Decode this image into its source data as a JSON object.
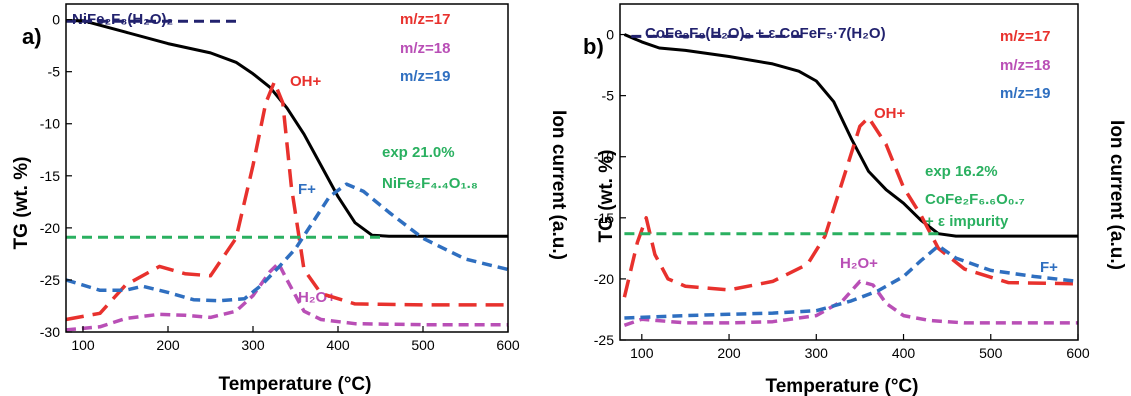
{
  "chart_data": [
    {
      "type": "line",
      "panel_label": "a)",
      "xlabel": "Temperature (°C)",
      "ylabel": "TG (wt. %)",
      "y2label": "Ion current (a.u.)",
      "xlim": [
        80,
        600
      ],
      "ylim": [
        -30,
        1.5
      ],
      "xticks": [
        100,
        200,
        300,
        400,
        500,
        600
      ],
      "yticks": [
        0,
        -5,
        -10,
        -15,
        -20,
        -25,
        -30
      ],
      "sample_label": "NiFe₂F₈(H₂O)₂",
      "annotations": [
        "OH+",
        "F+",
        "H₂O+",
        "exp 21.0%",
        "NiFe₂F₄.₄O₁.₈"
      ],
      "legend": [
        {
          "name": "m/z=17",
          "color": "#e8312d"
        },
        {
          "name": "m/z=18",
          "color": "#b94fb6"
        },
        {
          "name": "m/z=19",
          "color": "#2f6fc0"
        }
      ],
      "series": [
        {
          "role": "TG",
          "color": "#000000",
          "style": "solid",
          "x": [
            80,
            100,
            150,
            200,
            250,
            280,
            300,
            320,
            340,
            360,
            380,
            400,
            420,
            440,
            460,
            500,
            550,
            600
          ],
          "y": [
            -0.1,
            -0.1,
            -1.2,
            -2.3,
            -3.2,
            -4.1,
            -5.2,
            -6.5,
            -8.5,
            -11,
            -14,
            -17,
            -19.5,
            -20.7,
            -20.8,
            -20.8,
            -20.8,
            -20.8
          ]
        },
        {
          "role": "m/z=17",
          "color": "#e8312d",
          "style": "dashed",
          "x": [
            80,
            120,
            150,
            190,
            220,
            250,
            280,
            300,
            315,
            325,
            335,
            345,
            360,
            380,
            420,
            500,
            600
          ],
          "y": [
            -28.8,
            -28.2,
            -25.5,
            -23.7,
            -24.4,
            -24.6,
            -21,
            -14,
            -8,
            -6,
            -8,
            -16,
            -24,
            -26.3,
            -27.3,
            -27.4,
            -27.4
          ]
        },
        {
          "role": "m/z=18",
          "color": "#b94fb6",
          "style": "dashed",
          "x": [
            80,
            120,
            150,
            190,
            220,
            250,
            280,
            300,
            320,
            330,
            340,
            350,
            360,
            380,
            420,
            500,
            600
          ],
          "y": [
            -29.8,
            -29.5,
            -28.7,
            -28.3,
            -28.4,
            -28.6,
            -28,
            -26.5,
            -24.2,
            -23.4,
            -25,
            -26.5,
            -28,
            -28.8,
            -29.2,
            -29.3,
            -29.3
          ]
        },
        {
          "role": "m/z=19",
          "color": "#2f6fc0",
          "style": "dashed",
          "x": [
            80,
            120,
            150,
            170,
            200,
            230,
            260,
            290,
            310,
            330,
            350,
            370,
            390,
            410,
            430,
            460,
            500,
            550,
            600
          ],
          "y": [
            -25,
            -26,
            -26,
            -25.6,
            -26.2,
            -26.9,
            -27,
            -26.8,
            -25.5,
            -23.8,
            -22,
            -19.5,
            -17,
            -15.8,
            -16.5,
            -18.5,
            -21,
            -23,
            -24
          ]
        },
        {
          "role": "exp",
          "color": "#2ab060",
          "style": "dashed",
          "x": [
            80,
            450
          ],
          "y": [
            -20.9,
            -20.9
          ]
        },
        {
          "role": "reference",
          "color": "#22226e",
          "style": "dashed",
          "x": [
            80,
            283
          ],
          "y": [
            -0.15,
            -0.15
          ]
        }
      ]
    },
    {
      "type": "line",
      "panel_label": "b)",
      "xlabel": "Temperature (°C)",
      "ylabel": "TG (wt. %)",
      "y2label": "Ion current (a.u.)",
      "xlim": [
        75,
        600
      ],
      "ylim": [
        -25,
        2.5
      ],
      "xticks": [
        100,
        200,
        300,
        400,
        500,
        600
      ],
      "yticks": [
        0,
        -5,
        -10,
        -15,
        -20,
        -25
      ],
      "sample_label": "CoFe₂F₈(H₂O)₂ + ε CoFeF₅·7(H₂O)",
      "annotations": [
        "OH+",
        "H₂O+",
        "F+",
        "exp 16.2%",
        "CoFe₂F₆.₆O₀.₇",
        "+ ε impurity"
      ],
      "legend": [
        {
          "name": "m/z=17",
          "color": "#e8312d"
        },
        {
          "name": "m/z=18",
          "color": "#b94fb6"
        },
        {
          "name": "m/z=19",
          "color": "#2f6fc0"
        }
      ],
      "series": [
        {
          "role": "TG",
          "color": "#000000",
          "style": "solid",
          "x": [
            80,
            100,
            120,
            150,
            200,
            250,
            280,
            300,
            320,
            340,
            360,
            380,
            400,
            420,
            440,
            460,
            500,
            550,
            600
          ],
          "y": [
            0,
            -0.6,
            -1.1,
            -1.3,
            -1.8,
            -2.4,
            -3,
            -3.8,
            -5.5,
            -8.5,
            -11.2,
            -12.7,
            -13.8,
            -15.2,
            -16.3,
            -16.5,
            -16.5,
            -16.5,
            -16.5
          ]
        },
        {
          "role": "m/z=17",
          "color": "#e8312d",
          "style": "dashed",
          "x": [
            80,
            95,
            105,
            115,
            130,
            150,
            200,
            250,
            290,
            310,
            330,
            350,
            360,
            380,
            400,
            420,
            440,
            470,
            520,
            600
          ],
          "y": [
            -21.5,
            -17,
            -15,
            -18,
            -20,
            -20.6,
            -20.9,
            -20.2,
            -18.8,
            -16.5,
            -12,
            -7.5,
            -6.8,
            -9,
            -12.5,
            -14.8,
            -17.5,
            -19.2,
            -20.3,
            -20.4
          ]
        },
        {
          "role": "m/z=18",
          "color": "#b94fb6",
          "style": "dashed",
          "x": [
            80,
            100,
            150,
            200,
            250,
            300,
            330,
            350,
            365,
            380,
            400,
            430,
            470,
            520,
            600
          ],
          "y": [
            -23.8,
            -23.3,
            -23.6,
            -23.6,
            -23.5,
            -23,
            -21.8,
            -20.2,
            -20.5,
            -22,
            -23,
            -23.4,
            -23.6,
            -23.6,
            -23.6
          ]
        },
        {
          "role": "m/z=19",
          "color": "#2f6fc0",
          "style": "dashed",
          "x": [
            80,
            150,
            200,
            250,
            300,
            340,
            370,
            400,
            420,
            440,
            460,
            500,
            550,
            600
          ],
          "y": [
            -23.2,
            -23,
            -22.9,
            -22.8,
            -22.6,
            -21.8,
            -21,
            -19.8,
            -18.5,
            -17.3,
            -18.3,
            -19.3,
            -19.8,
            -20.2
          ]
        },
        {
          "role": "exp",
          "color": "#2ab060",
          "style": "dashed",
          "x": [
            80,
            445
          ],
          "y": [
            -16.3,
            -16.3
          ]
        },
        {
          "role": "reference",
          "color": "#22226e",
          "style": "dashed",
          "x": [
            88,
            285
          ],
          "y": [
            -0.15,
            -0.15
          ]
        }
      ]
    }
  ]
}
